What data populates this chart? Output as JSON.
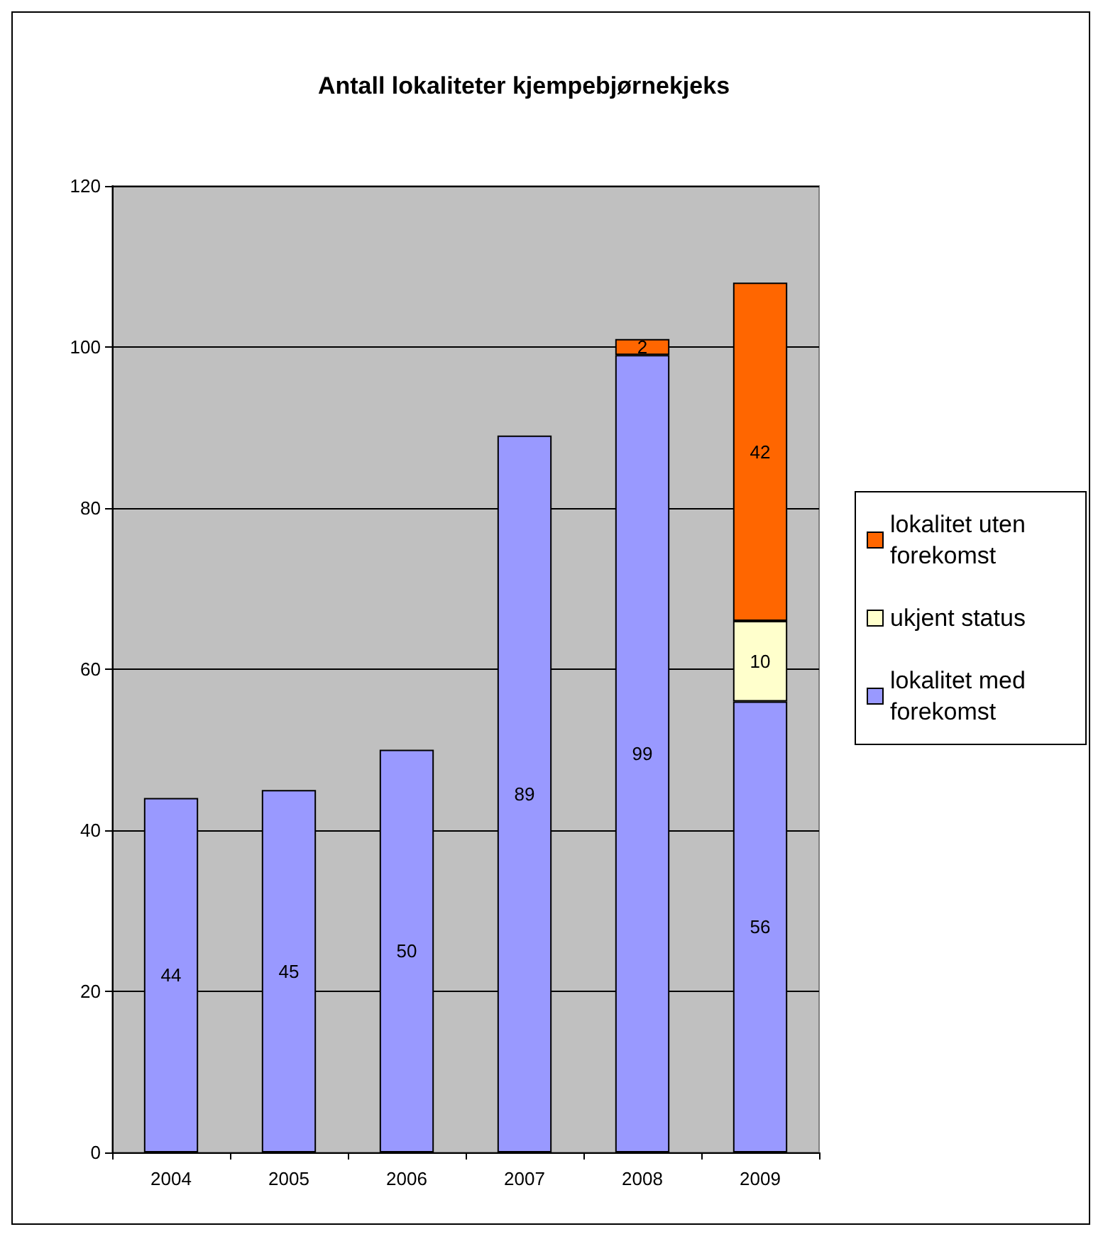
{
  "chart_data": {
    "type": "bar",
    "title": "Antall lokaliteter kjempebjørnekjeks",
    "categories": [
      "2004",
      "2005",
      "2006",
      "2007",
      "2008",
      "2009"
    ],
    "stacked": true,
    "data_labels": true,
    "grid": "y",
    "legend": "right",
    "ylim": [
      0,
      120
    ],
    "yticks": [
      0,
      20,
      40,
      60,
      80,
      100,
      120
    ],
    "series": [
      {
        "name": "lokalitet med forekomst",
        "color": "#9999ff",
        "values": [
          44,
          45,
          50,
          89,
          99,
          56
        ]
      },
      {
        "name": "ukjent status",
        "color": "#ffffcc",
        "values": [
          null,
          null,
          null,
          null,
          null,
          10
        ]
      },
      {
        "name": "lokalitet uten forekomst",
        "color": "#ff6600",
        "values": [
          null,
          null,
          null,
          null,
          2,
          42
        ]
      }
    ]
  }
}
